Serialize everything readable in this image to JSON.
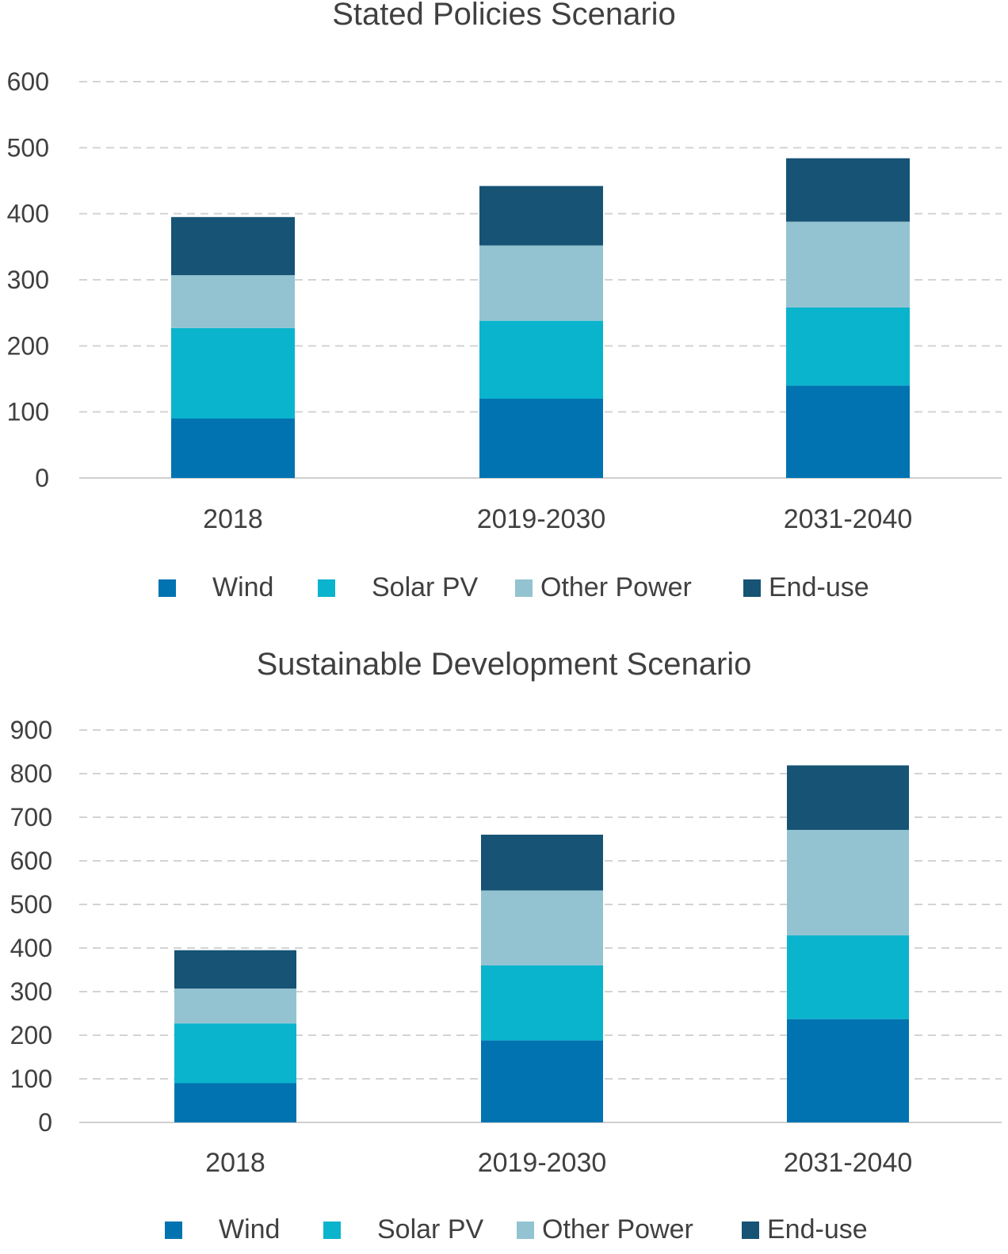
{
  "colors": {
    "Wind": "#0073b0",
    "Solar PV": "#0ab4cd",
    "Other Power": "#93c3d1",
    "End-use": "#165375",
    "grid": "#d3d3d3",
    "axis": "#cfcfcf"
  },
  "chart_data": [
    {
      "type": "bar",
      "stacked": true,
      "title": "Stated Policies Scenario",
      "categories": [
        "2018",
        "2019-2030",
        "2031-2040"
      ],
      "series": [
        {
          "name": "Wind",
          "values": [
            90,
            120,
            140
          ]
        },
        {
          "name": "Solar PV",
          "values": [
            137,
            118,
            118
          ]
        },
        {
          "name": "Other Power",
          "values": [
            80,
            114,
            130
          ]
        },
        {
          "name": "End-use",
          "values": [
            88,
            90,
            96
          ]
        }
      ],
      "yticks": [
        "0",
        "100",
        "200",
        "300",
        "400",
        "500",
        "600"
      ],
      "ylim": [
        0,
        600
      ],
      "grid": true,
      "legend": "bottom"
    },
    {
      "type": "bar",
      "stacked": true,
      "title": "Sustainable Development Scenario",
      "categories": [
        "2018",
        "2019-2030",
        "2031-2040"
      ],
      "series": [
        {
          "name": "Wind",
          "values": [
            90,
            188,
            237
          ]
        },
        {
          "name": "Solar PV",
          "values": [
            137,
            172,
            192
          ]
        },
        {
          "name": "Other Power",
          "values": [
            80,
            172,
            242
          ]
        },
        {
          "name": "End-use",
          "values": [
            88,
            128,
            148
          ]
        }
      ],
      "yticks": [
        "0",
        "100",
        "200",
        "300",
        "400",
        "500",
        "600",
        "700",
        "800",
        "900"
      ],
      "ylim": [
        0,
        900
      ],
      "grid": true,
      "legend": "bottom"
    }
  ]
}
